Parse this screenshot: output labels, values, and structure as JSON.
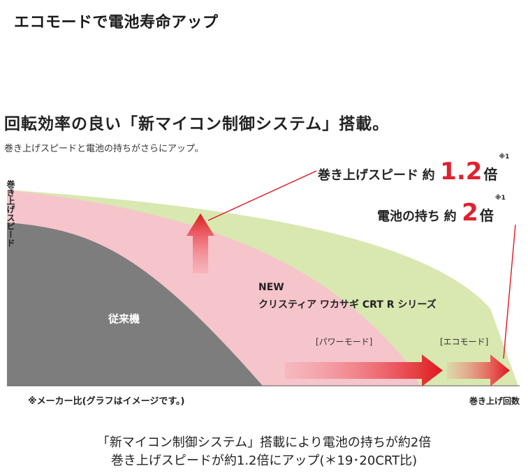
{
  "page": {
    "title": "エコモードで電池寿命アップ"
  },
  "headline": "回転効率の良い「新マイコン制御システム」搭載。",
  "subhead": "巻き上げスピードと電池の持ちがさらにアップ。",
  "callouts": {
    "speed": {
      "label": "巻き上げスピード",
      "prefix": "約",
      "value": "1.2",
      "unit": "倍",
      "note": "※1"
    },
    "battery": {
      "label": "電池の持ち",
      "prefix": "約",
      "value": "2",
      "unit": "倍",
      "note": "※1"
    }
  },
  "footnote": "※メーカー比(グラフはイメージです。)",
  "captions": [
    "「新マイコン制御システム」搭載により電池の持ちが約2倍",
    "巻き上げスピードが約1.2倍にアップ(＊19･20CRT比)"
  ],
  "chart_data": {
    "type": "area",
    "ylabel": "巻き上げスピード",
    "xlabel": "巻き上げ回数",
    "grid": false,
    "legend": "none",
    "areas": [
      {
        "name": "クリスティア ワカサギ CRT R シリーズ",
        "annotation": "NEW\nクリスティア ワカサギ CRT R シリーズ",
        "mode": "エコモード",
        "mode_label": "[エコモード]",
        "color": "#d8e8b0",
        "relative_speed": 1.2,
        "relative_duration": 2.0
      },
      {
        "name": "クリスティア ワカサギ CRT R シリーズ",
        "mode": "パワーモード",
        "mode_label": "[パワーモード]",
        "color": "#f6c4cb",
        "relative_speed": 1.2,
        "relative_duration": 1.6
      },
      {
        "name": "従来機",
        "label": "従来機",
        "color": "#7d7d7d",
        "relative_speed": 1.0,
        "relative_duration": 1.0
      }
    ],
    "colors": {
      "arrow": "#e2141f",
      "arrow_light": "#f57a7f",
      "accent": "#e0212f"
    }
  }
}
